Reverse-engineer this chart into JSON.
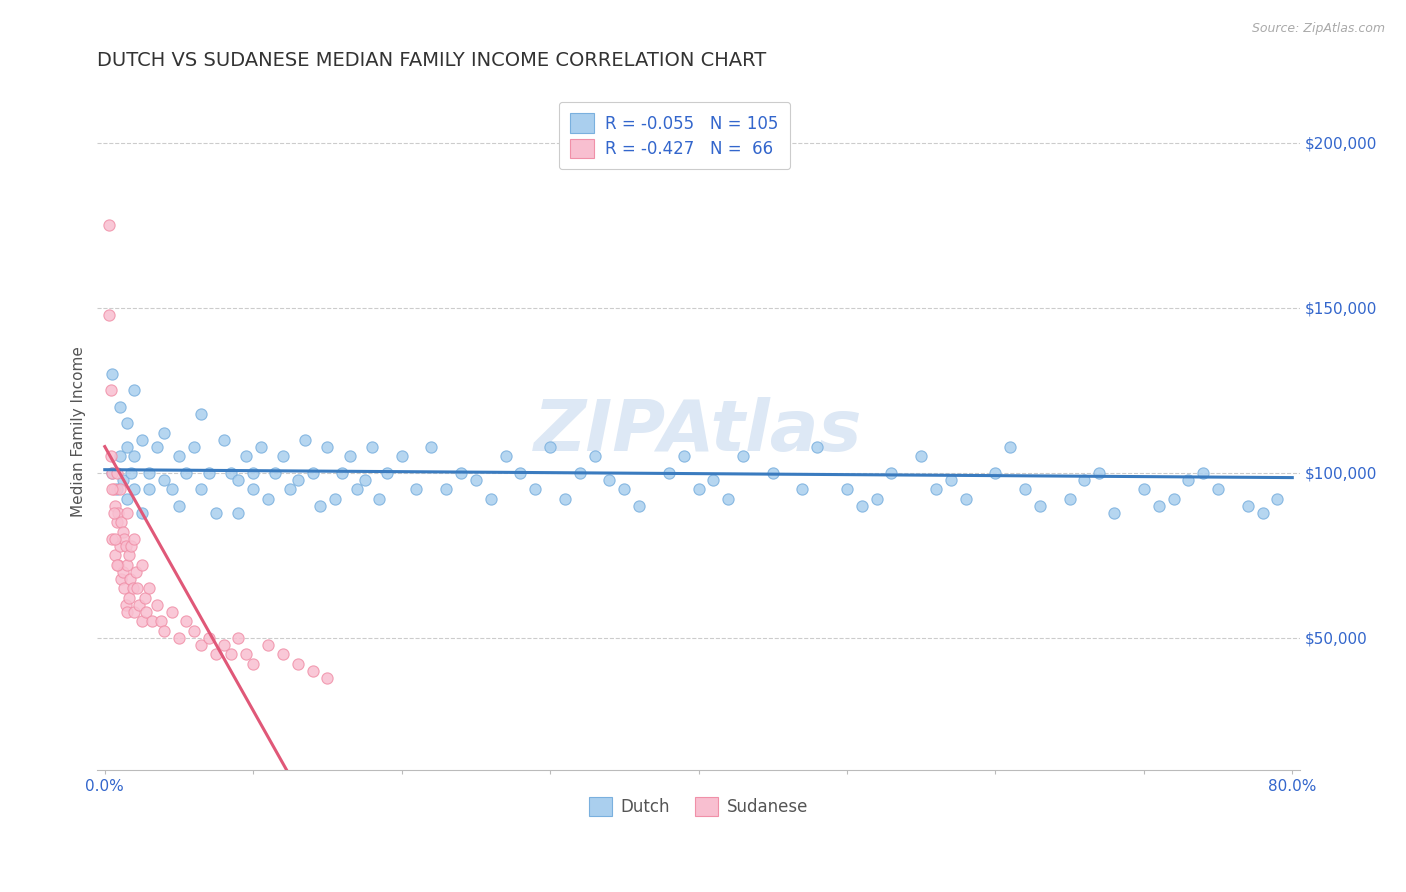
{
  "title": "DUTCH VS SUDANESE MEDIAN FAMILY INCOME CORRELATION CHART",
  "source": "Source: ZipAtlas.com",
  "ylabel": "Median Family Income",
  "xlim": [
    -0.005,
    0.805
  ],
  "ylim": [
    10000,
    215000
  ],
  "yticks": [
    50000,
    100000,
    150000,
    200000
  ],
  "ytick_labels": [
    "$50,000",
    "$100,000",
    "$150,000",
    "$200,000"
  ],
  "background_color": "#ffffff",
  "grid_color": "#cccccc",
  "dutch_dot_face": "#aacfee",
  "dutch_dot_edge": "#7ab0de",
  "sudanese_dot_face": "#f8bfd0",
  "sudanese_dot_edge": "#f090a8",
  "dutch_line_color": "#3a7bbf",
  "sudanese_line_color": "#e05878",
  "dash_ext_color": "#d0a0b0",
  "legend_text_color": "#3366cc",
  "axis_tick_color": "#3366cc",
  "title_color": "#333333",
  "title_fontsize": 14,
  "watermark_text": "ZIPAtlas",
  "watermark_color": "#dde8f5",
  "legend_dutch_label": "R = -0.055   N = 105",
  "legend_sudanese_label": "R = -0.427   N =  66",
  "bottom_legend_dutch": "Dutch",
  "bottom_legend_sudanese": "Sudanese",
  "dutch_scatter_x": [
    0.005,
    0.008,
    0.01,
    0.012,
    0.015,
    0.015,
    0.018,
    0.02,
    0.02,
    0.025,
    0.025,
    0.03,
    0.03,
    0.035,
    0.04,
    0.04,
    0.045,
    0.05,
    0.05,
    0.055,
    0.06,
    0.065,
    0.065,
    0.07,
    0.075,
    0.08,
    0.085,
    0.09,
    0.09,
    0.095,
    0.1,
    0.1,
    0.105,
    0.11,
    0.115,
    0.12,
    0.125,
    0.13,
    0.135,
    0.14,
    0.145,
    0.15,
    0.155,
    0.16,
    0.165,
    0.17,
    0.175,
    0.18,
    0.185,
    0.19,
    0.2,
    0.21,
    0.22,
    0.23,
    0.24,
    0.25,
    0.26,
    0.27,
    0.28,
    0.29,
    0.3,
    0.31,
    0.32,
    0.33,
    0.34,
    0.35,
    0.36,
    0.38,
    0.39,
    0.4,
    0.41,
    0.42,
    0.43,
    0.45,
    0.47,
    0.48,
    0.5,
    0.51,
    0.52,
    0.53,
    0.55,
    0.56,
    0.57,
    0.58,
    0.6,
    0.61,
    0.62,
    0.63,
    0.65,
    0.66,
    0.67,
    0.68,
    0.7,
    0.71,
    0.72,
    0.73,
    0.74,
    0.75,
    0.77,
    0.78,
    0.79,
    0.005,
    0.01,
    0.015,
    0.02
  ],
  "dutch_scatter_y": [
    100000,
    95000,
    105000,
    98000,
    108000,
    92000,
    100000,
    105000,
    95000,
    110000,
    88000,
    100000,
    95000,
    108000,
    98000,
    112000,
    95000,
    105000,
    90000,
    100000,
    108000,
    95000,
    118000,
    100000,
    88000,
    110000,
    100000,
    98000,
    88000,
    105000,
    100000,
    95000,
    108000,
    92000,
    100000,
    105000,
    95000,
    98000,
    110000,
    100000,
    90000,
    108000,
    92000,
    100000,
    105000,
    95000,
    98000,
    108000,
    92000,
    100000,
    105000,
    95000,
    108000,
    95000,
    100000,
    98000,
    92000,
    105000,
    100000,
    95000,
    108000,
    92000,
    100000,
    105000,
    98000,
    95000,
    90000,
    100000,
    105000,
    95000,
    98000,
    92000,
    105000,
    100000,
    95000,
    108000,
    95000,
    90000,
    92000,
    100000,
    105000,
    95000,
    98000,
    92000,
    100000,
    108000,
    95000,
    90000,
    92000,
    98000,
    100000,
    88000,
    95000,
    90000,
    92000,
    98000,
    100000,
    95000,
    90000,
    88000,
    92000,
    130000,
    120000,
    115000,
    125000
  ],
  "sudanese_scatter_x": [
    0.003,
    0.004,
    0.005,
    0.005,
    0.006,
    0.007,
    0.007,
    0.008,
    0.008,
    0.009,
    0.009,
    0.01,
    0.01,
    0.011,
    0.011,
    0.012,
    0.012,
    0.013,
    0.013,
    0.014,
    0.014,
    0.015,
    0.015,
    0.015,
    0.016,
    0.016,
    0.017,
    0.018,
    0.019,
    0.02,
    0.02,
    0.021,
    0.022,
    0.023,
    0.025,
    0.025,
    0.027,
    0.028,
    0.03,
    0.032,
    0.035,
    0.038,
    0.04,
    0.045,
    0.05,
    0.055,
    0.06,
    0.065,
    0.07,
    0.075,
    0.08,
    0.085,
    0.09,
    0.095,
    0.1,
    0.11,
    0.12,
    0.13,
    0.14,
    0.15,
    0.003,
    0.004,
    0.005,
    0.006,
    0.007,
    0.008
  ],
  "sudanese_scatter_y": [
    175000,
    105000,
    100000,
    80000,
    95000,
    90000,
    75000,
    100000,
    85000,
    88000,
    72000,
    95000,
    78000,
    85000,
    68000,
    82000,
    70000,
    80000,
    65000,
    78000,
    60000,
    88000,
    72000,
    58000,
    75000,
    62000,
    68000,
    78000,
    65000,
    80000,
    58000,
    70000,
    65000,
    60000,
    72000,
    55000,
    62000,
    58000,
    65000,
    55000,
    60000,
    55000,
    52000,
    58000,
    50000,
    55000,
    52000,
    48000,
    50000,
    45000,
    48000,
    45000,
    50000,
    45000,
    42000,
    48000,
    45000,
    42000,
    40000,
    38000,
    148000,
    125000,
    95000,
    88000,
    80000,
    72000
  ]
}
